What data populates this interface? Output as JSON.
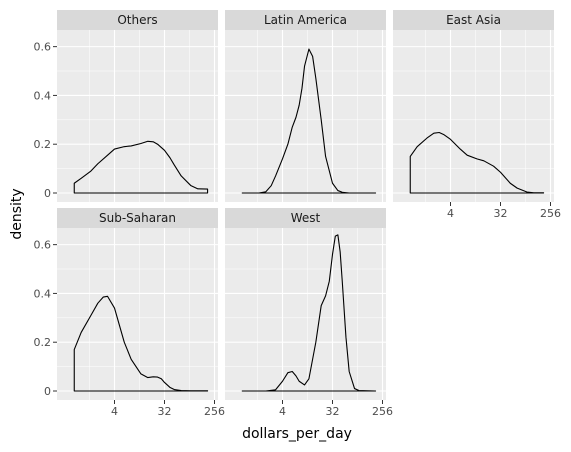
{
  "chart_data": {
    "type": "area",
    "subtype": "faceted density (log2 x-axis)",
    "xlabel": "dollars_per_day",
    "ylabel": "density",
    "x_scale": "log2",
    "xlim": [
      0.5,
      256
    ],
    "ylim": [
      0,
      0.66
    ],
    "x_ticks": [
      4,
      32,
      256
    ],
    "x_tick_labels": [
      "4",
      "32",
      "256"
    ],
    "y_ticks": [
      0,
      0.2,
      0.4,
      0.6
    ],
    "y_tick_labels": [
      "0",
      "0.2",
      "0.4",
      "0.6"
    ],
    "grid": true,
    "colors": {
      "panel_bg": "#ebebeb",
      "strip_bg": "#d9d9d9",
      "grid": "#ffffff",
      "line": "#000000"
    },
    "facets": [
      {
        "name": "Others",
        "x": [
          0.75,
          1,
          1.5,
          2,
          3,
          4,
          6,
          8,
          12,
          16,
          20,
          24,
          32,
          40,
          48,
          64,
          96,
          128,
          192
        ],
        "y": [
          0.04,
          0.06,
          0.09,
          0.12,
          0.155,
          0.18,
          0.19,
          0.193,
          0.203,
          0.212,
          0.21,
          0.2,
          0.175,
          0.145,
          0.115,
          0.07,
          0.03,
          0.017,
          0.016
        ]
      },
      {
        "name": "Latin America",
        "x": [
          0.75,
          1.5,
          2,
          2.5,
          3,
          4,
          5,
          6,
          7,
          8,
          9,
          10,
          12,
          14,
          16,
          20,
          24,
          32,
          40,
          48,
          64,
          96,
          192
        ],
        "y": [
          0,
          0,
          0.005,
          0.03,
          0.07,
          0.14,
          0.2,
          0.27,
          0.31,
          0.36,
          0.43,
          0.52,
          0.59,
          0.56,
          0.47,
          0.3,
          0.15,
          0.04,
          0.01,
          0.003,
          0,
          0,
          0
        ]
      },
      {
        "name": "East Asia",
        "x": [
          0.75,
          1,
          1.5,
          2,
          2.5,
          3,
          4,
          6,
          8,
          12,
          16,
          24,
          32,
          48,
          64,
          96,
          128,
          192
        ],
        "y": [
          0.15,
          0.19,
          0.225,
          0.245,
          0.248,
          0.24,
          0.22,
          0.18,
          0.155,
          0.14,
          0.132,
          0.11,
          0.085,
          0.04,
          0.02,
          0.004,
          0.001,
          0.001
        ]
      },
      {
        "name": "Sub-Saharan",
        "x": [
          0.75,
          1,
          1.5,
          2,
          2.5,
          3,
          4,
          6,
          8,
          12,
          16,
          20,
          24,
          28,
          32,
          40,
          48,
          64,
          96,
          192
        ],
        "y": [
          0.17,
          0.24,
          0.31,
          0.36,
          0.385,
          0.388,
          0.34,
          0.2,
          0.13,
          0.07,
          0.055,
          0.058,
          0.057,
          0.05,
          0.035,
          0.015,
          0.006,
          0.002,
          0.001,
          0.001
        ]
      },
      {
        "name": "West",
        "x": [
          0.75,
          2,
          3,
          4,
          5,
          6,
          7,
          8,
          10,
          12,
          16,
          20,
          24,
          28,
          32,
          36,
          40,
          44,
          48,
          56,
          64,
          80,
          96,
          192
        ],
        "y": [
          0,
          0,
          0.005,
          0.04,
          0.075,
          0.08,
          0.062,
          0.04,
          0.025,
          0.05,
          0.2,
          0.35,
          0.39,
          0.45,
          0.56,
          0.635,
          0.64,
          0.57,
          0.45,
          0.22,
          0.08,
          0.01,
          0.002,
          0
        ]
      }
    ]
  }
}
